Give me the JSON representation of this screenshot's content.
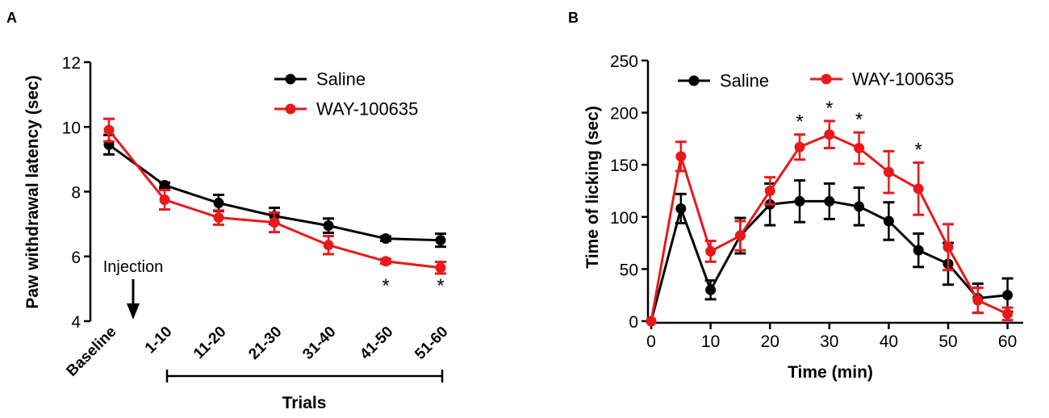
{
  "chart_data": [
    {
      "panel_label": "A",
      "type": "line",
      "title": "",
      "xlabel": "Trials",
      "ylabel": "Paw withdrawal latency (sec)",
      "categories": [
        "Baseline",
        "1-10",
        "11-20",
        "21-30",
        "31-40",
        "41-50",
        "51-60"
      ],
      "ylim": [
        4,
        12
      ],
      "yticks": [
        4,
        6,
        8,
        10,
        12
      ],
      "grid": false,
      "legend_position": "top-right",
      "series": [
        {
          "name": "Saline",
          "color": "#000000",
          "values": [
            9.45,
            8.2,
            7.65,
            7.25,
            6.95,
            6.55,
            6.5
          ],
          "errors": [
            0.3,
            0.08,
            0.25,
            0.25,
            0.22,
            0.07,
            0.2
          ]
        },
        {
          "name": "WAY-100635",
          "color": "#e8191b",
          "values": [
            9.9,
            7.75,
            7.2,
            7.05,
            6.35,
            5.85,
            5.65
          ],
          "errors": [
            0.35,
            0.3,
            0.22,
            0.3,
            0.28,
            0.07,
            0.18
          ]
        }
      ],
      "significance": [
        {
          "category": "41-50",
          "label": "*"
        },
        {
          "category": "51-60",
          "label": "*"
        }
      ],
      "annotation": {
        "text": "Injection",
        "between": [
          "Baseline",
          "1-10"
        ]
      }
    },
    {
      "panel_label": "B",
      "type": "line",
      "title": "",
      "xlabel": "Time (min)",
      "ylabel": "Time of licking (sec)",
      "xlim": [
        0,
        63
      ],
      "xticks": [
        0,
        10,
        20,
        30,
        40,
        50,
        60
      ],
      "ylim": [
        0,
        250
      ],
      "yticks": [
        0,
        50,
        100,
        150,
        200,
        250
      ],
      "grid": false,
      "legend_position": "top",
      "x": [
        0,
        5,
        10,
        15,
        20,
        25,
        30,
        35,
        40,
        45,
        50,
        55,
        60
      ],
      "series": [
        {
          "name": "Saline",
          "color": "#000000",
          "values": [
            0,
            108,
            30,
            82,
            112,
            115,
            115,
            110,
            96,
            68,
            55,
            22,
            25
          ],
          "errors": [
            0,
            14,
            9,
            17,
            20,
            20,
            17,
            18,
            18,
            16,
            20,
            14,
            16
          ]
        },
        {
          "name": "WAY-100635",
          "color": "#e8191b",
          "values": [
            0,
            158,
            67,
            82,
            125,
            167,
            179,
            166,
            143,
            127,
            71,
            20,
            7
          ],
          "errors": [
            0,
            14,
            10,
            14,
            13,
            12,
            13,
            15,
            20,
            25,
            22,
            12,
            6
          ]
        }
      ],
      "significance": [
        {
          "x": 25,
          "label": "*"
        },
        {
          "x": 30,
          "label": "*"
        },
        {
          "x": 35,
          "label": "*"
        },
        {
          "x": 45,
          "label": "*"
        }
      ]
    }
  ]
}
